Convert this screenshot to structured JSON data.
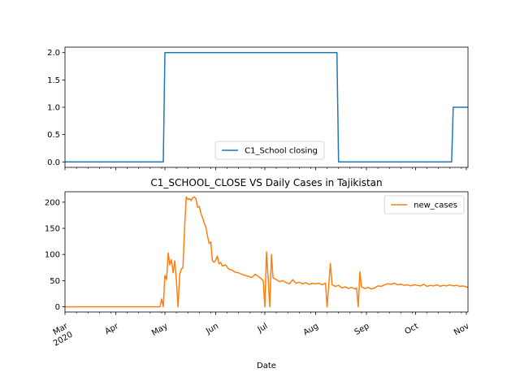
{
  "chart_data": [
    {
      "type": "line",
      "title": "",
      "xlabel": "",
      "ylabel": "",
      "x_range": [
        "2020-03-01",
        "2020-11-02"
      ],
      "ylim": [
        -0.1,
        2.1
      ],
      "y_ticks": [
        0.0,
        0.5,
        1.0,
        1.5,
        2.0
      ],
      "y_tick_labels": [
        "0.0",
        "0.5",
        "1.0",
        "1.5",
        "2.0"
      ],
      "legend_placement": "lower center",
      "grid": false,
      "series": [
        {
          "name": "C1_School closing",
          "color": "#1f77b4",
          "step": true,
          "points": [
            [
              "2020-03-01",
              0
            ],
            [
              "2020-04-30",
              0
            ],
            [
              "2020-05-01",
              2
            ],
            [
              "2020-08-14",
              2
            ],
            [
              "2020-08-15",
              0
            ],
            [
              "2020-10-23",
              0
            ],
            [
              "2020-10-24",
              1
            ],
            [
              "2020-11-02",
              1
            ]
          ]
        }
      ]
    },
    {
      "type": "line",
      "title": "C1_SCHOOL_CLOSE VS Daily Cases in Tajikistan",
      "xlabel": "Date",
      "ylabel": "",
      "x_range": [
        "2020-03-01",
        "2020-11-02"
      ],
      "ylim": [
        -10,
        220
      ],
      "y_ticks": [
        0,
        50,
        100,
        150,
        200
      ],
      "y_tick_labels": [
        "0",
        "50",
        "100",
        "150",
        "200"
      ],
      "x_ticks": [
        {
          "date": "2020-03-01",
          "label": "Mar",
          "sublabel": "2020"
        },
        {
          "date": "2020-04-01",
          "label": "Apr"
        },
        {
          "date": "2020-05-01",
          "label": "May"
        },
        {
          "date": "2020-06-01",
          "label": "Jun"
        },
        {
          "date": "2020-07-01",
          "label": "Jul"
        },
        {
          "date": "2020-08-01",
          "label": "Aug"
        },
        {
          "date": "2020-09-01",
          "label": "Sep"
        },
        {
          "date": "2020-10-01",
          "label": "Oct"
        },
        {
          "date": "2020-11-01",
          "label": "Nov"
        }
      ],
      "legend_placement": "upper right",
      "grid": false,
      "series": [
        {
          "name": "new_cases",
          "color": "#ff7f0e",
          "points": [
            [
              "2020-03-01",
              0
            ],
            [
              "2020-04-28",
              0
            ],
            [
              "2020-04-29",
              15
            ],
            [
              "2020-04-30",
              0
            ],
            [
              "2020-05-01",
              60
            ],
            [
              "2020-05-02",
              52
            ],
            [
              "2020-05-03",
              103
            ],
            [
              "2020-05-04",
              80
            ],
            [
              "2020-05-05",
              90
            ],
            [
              "2020-05-06",
              65
            ],
            [
              "2020-05-07",
              88
            ],
            [
              "2020-05-08",
              50
            ],
            [
              "2020-05-09",
              0
            ],
            [
              "2020-05-10",
              62
            ],
            [
              "2020-05-11",
              72
            ],
            [
              "2020-05-12",
              75
            ],
            [
              "2020-05-13",
              150
            ],
            [
              "2020-05-14",
              210
            ],
            [
              "2020-05-15",
              205
            ],
            [
              "2020-05-16",
              207
            ],
            [
              "2020-05-17",
              203
            ],
            [
              "2020-05-18",
              209
            ],
            [
              "2020-05-19",
              210
            ],
            [
              "2020-05-20",
              206
            ],
            [
              "2020-05-21",
              190
            ],
            [
              "2020-05-22",
              192
            ],
            [
              "2020-05-23",
              178
            ],
            [
              "2020-05-24",
              170
            ],
            [
              "2020-05-25",
              160
            ],
            [
              "2020-05-26",
              152
            ],
            [
              "2020-05-27",
              135
            ],
            [
              "2020-05-28",
              121
            ],
            [
              "2020-05-29",
              124
            ],
            [
              "2020-05-30",
              88
            ],
            [
              "2020-05-31",
              85
            ],
            [
              "2020-06-01",
              89
            ],
            [
              "2020-06-02",
              97
            ],
            [
              "2020-06-03",
              82
            ],
            [
              "2020-06-04",
              85
            ],
            [
              "2020-06-05",
              78
            ],
            [
              "2020-06-07",
              80
            ],
            [
              "2020-06-09",
              72
            ],
            [
              "2020-06-11",
              70
            ],
            [
              "2020-06-13",
              66
            ],
            [
              "2020-06-15",
              65
            ],
            [
              "2020-06-17",
              62
            ],
            [
              "2020-06-19",
              60
            ],
            [
              "2020-06-21",
              58
            ],
            [
              "2020-06-23",
              56
            ],
            [
              "2020-06-25",
              62
            ],
            [
              "2020-06-27",
              58
            ],
            [
              "2020-06-29",
              53
            ],
            [
              "2020-06-30",
              50
            ],
            [
              "2020-07-01",
              0
            ],
            [
              "2020-07-02",
              105
            ],
            [
              "2020-07-03",
              55
            ],
            [
              "2020-07-04",
              0
            ],
            [
              "2020-07-05",
              100
            ],
            [
              "2020-07-06",
              55
            ],
            [
              "2020-07-08",
              52
            ],
            [
              "2020-07-10",
              48
            ],
            [
              "2020-07-12",
              50
            ],
            [
              "2020-07-14",
              46
            ],
            [
              "2020-07-16",
              44
            ],
            [
              "2020-07-18",
              52
            ],
            [
              "2020-07-20",
              45
            ],
            [
              "2020-07-22",
              47
            ],
            [
              "2020-07-24",
              44
            ],
            [
              "2020-07-26",
              46
            ],
            [
              "2020-07-28",
              43
            ],
            [
              "2020-07-30",
              45
            ],
            [
              "2020-08-01",
              44
            ],
            [
              "2020-08-03",
              45
            ],
            [
              "2020-08-05",
              42
            ],
            [
              "2020-08-07",
              45
            ],
            [
              "2020-08-08",
              0
            ],
            [
              "2020-08-10",
              83
            ],
            [
              "2020-08-11",
              42
            ],
            [
              "2020-08-13",
              39
            ],
            [
              "2020-08-15",
              41
            ],
            [
              "2020-08-17",
              36
            ],
            [
              "2020-08-19",
              38
            ],
            [
              "2020-08-21",
              35
            ],
            [
              "2020-08-23",
              37
            ],
            [
              "2020-08-25",
              34
            ],
            [
              "2020-08-26",
              36
            ],
            [
              "2020-08-27",
              0
            ],
            [
              "2020-08-28",
              67
            ],
            [
              "2020-08-29",
              38
            ],
            [
              "2020-08-31",
              35
            ],
            [
              "2020-09-02",
              37
            ],
            [
              "2020-09-04",
              34
            ],
            [
              "2020-09-06",
              36
            ],
            [
              "2020-09-08",
              40
            ],
            [
              "2020-09-10",
              39
            ],
            [
              "2020-09-12",
              42
            ],
            [
              "2020-09-14",
              44
            ],
            [
              "2020-09-16",
              43
            ],
            [
              "2020-09-18",
              45
            ],
            [
              "2020-09-20",
              42
            ],
            [
              "2020-09-22",
              43
            ],
            [
              "2020-09-24",
              41
            ],
            [
              "2020-09-26",
              42
            ],
            [
              "2020-09-28",
              40
            ],
            [
              "2020-09-30",
              42
            ],
            [
              "2020-10-02",
              41
            ],
            [
              "2020-10-04",
              40
            ],
            [
              "2020-10-06",
              43
            ],
            [
              "2020-10-08",
              39
            ],
            [
              "2020-10-10",
              41
            ],
            [
              "2020-10-12",
              40
            ],
            [
              "2020-10-14",
              42
            ],
            [
              "2020-10-16",
              39
            ],
            [
              "2020-10-18",
              41
            ],
            [
              "2020-10-20",
              40
            ],
            [
              "2020-10-22",
              42
            ],
            [
              "2020-10-24",
              40
            ],
            [
              "2020-10-26",
              41
            ],
            [
              "2020-10-28",
              39
            ],
            [
              "2020-10-30",
              40
            ],
            [
              "2020-11-01",
              38
            ],
            [
              "2020-11-02",
              37
            ]
          ]
        }
      ]
    }
  ]
}
